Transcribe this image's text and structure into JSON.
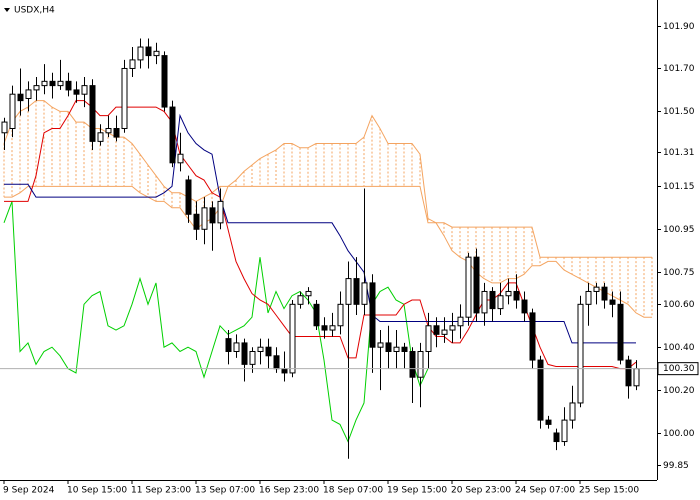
{
  "chart_data": {
    "type": "candlestick",
    "title": "USDX,H4",
    "categories": [
      "9 Sep 2024",
      null,
      null,
      null,
      null,
      null,
      null,
      null,
      "10 Sep 15:00",
      null,
      null,
      null,
      null,
      null,
      null,
      null,
      "11 Sep 23:00",
      null,
      null,
      null,
      null,
      null,
      null,
      null,
      "13 Sep 07:00",
      null,
      null,
      null,
      null,
      null,
      null,
      null,
      "16 Sep 23:00",
      null,
      null,
      null,
      null,
      null,
      null,
      null,
      "18 Sep 07:00",
      null,
      null,
      null,
      null,
      null,
      null,
      null,
      "19 Sep 15:00",
      null,
      null,
      null,
      null,
      null,
      null,
      null,
      "20 Sep 23:00",
      null,
      null,
      null,
      null,
      null,
      null,
      null,
      "24 Sep 07:00",
      null,
      null,
      null,
      null,
      null,
      null,
      null,
      "25 Sep 15:00",
      null,
      null,
      null,
      null,
      null,
      null,
      null,
      null,
      null
    ],
    "open": [
      101.4,
      101.42,
      101.58,
      101.56,
      101.6,
      101.62,
      101.64,
      101.62,
      101.64,
      101.6,
      101.58,
      101.62,
      101.36,
      101.4,
      101.42,
      101.42,
      101.7,
      101.74,
      101.8,
      101.76,
      101.76,
      101.52,
      101.26,
      101.18,
      101.02,
      100.95,
      101.05,
      100.98,
      100.44,
      100.38,
      100.42,
      100.32,
      100.38,
      100.4,
      100.36,
      100.3,
      100.28,
      100.6,
      100.64,
      100.6,
      100.5,
      100.48,
      100.5,
      100.6,
      100.72,
      100.6,
      100.7,
      100.4,
      100.42,
      100.38,
      100.4,
      100.38,
      100.26,
      100.38,
      100.5,
      100.46,
      100.48,
      100.5,
      100.54,
      100.82,
      100.56,
      100.66,
      100.58,
      100.64,
      100.66,
      100.62,
      100.56,
      100.34,
      100.06,
      100.0,
      99.96,
      100.06,
      100.14,
      100.6,
      100.66,
      100.68,
      100.62,
      100.6,
      100.34,
      100.22,
      null,
      null
    ],
    "high": [
      101.47,
      101.62,
      101.7,
      101.64,
      101.66,
      101.72,
      101.68,
      101.74,
      101.68,
      101.64,
      101.66,
      101.65,
      101.44,
      101.48,
      101.48,
      101.74,
      101.8,
      101.84,
      101.84,
      101.82,
      101.78,
      101.55,
      101.4,
      101.2,
      101.08,
      101.1,
      101.08,
      101.14,
      100.48,
      100.46,
      100.44,
      100.4,
      100.44,
      100.44,
      100.4,
      100.38,
      100.62,
      100.66,
      100.68,
      100.62,
      100.54,
      100.56,
      100.66,
      100.8,
      100.82,
      101.14,
      100.74,
      100.48,
      100.5,
      100.48,
      100.42,
      100.4,
      100.42,
      100.56,
      100.54,
      100.54,
      100.56,
      100.6,
      100.84,
      100.86,
      100.7,
      100.68,
      100.7,
      100.72,
      100.74,
      100.66,
      100.58,
      100.36,
      100.08,
      100.02,
      100.12,
      100.22,
      100.64,
      100.7,
      100.7,
      100.7,
      100.66,
      100.66,
      100.36,
      100.34,
      null,
      null
    ],
    "low": [
      101.32,
      101.38,
      101.48,
      101.5,
      101.55,
      101.58,
      101.56,
      101.6,
      101.57,
      101.54,
      101.52,
      101.32,
      101.34,
      101.38,
      101.36,
      101.4,
      101.66,
      101.7,
      101.7,
      101.72,
      101.5,
      101.24,
      101.22,
      100.98,
      100.9,
      100.88,
      100.85,
      100.95,
      100.32,
      100.35,
      100.24,
      100.28,
      100.32,
      100.3,
      100.28,
      100.24,
      100.26,
      100.58,
      100.6,
      100.48,
      100.44,
      100.45,
      100.46,
      99.88,
      100.55,
      100.55,
      100.28,
      100.2,
      100.3,
      100.3,
      100.3,
      100.14,
      100.12,
      100.3,
      100.4,
      100.42,
      100.42,
      100.44,
      100.5,
      100.52,
      100.5,
      100.52,
      100.55,
      100.6,
      100.58,
      100.52,
      100.3,
      100.02,
      100.02,
      99.92,
      99.94,
      100.02,
      100.12,
      100.5,
      100.6,
      100.58,
      100.54,
      100.32,
      100.16,
      100.2,
      null,
      null
    ],
    "close": [
      101.45,
      101.58,
      101.55,
      101.6,
      101.62,
      101.64,
      101.62,
      101.64,
      101.6,
      101.58,
      101.62,
      101.36,
      101.4,
      101.42,
      101.38,
      101.7,
      101.74,
      101.8,
      101.76,
      101.78,
      101.52,
      101.26,
      101.3,
      101.02,
      100.95,
      101.05,
      100.98,
      101.08,
      100.38,
      100.42,
      100.32,
      100.38,
      100.4,
      100.36,
      100.3,
      100.28,
      100.6,
      100.64,
      100.66,
      100.5,
      100.48,
      100.5,
      100.6,
      100.72,
      100.6,
      100.7,
      100.4,
      100.42,
      100.38,
      100.4,
      100.38,
      100.26,
      100.38,
      100.5,
      100.46,
      100.48,
      100.5,
      100.54,
      100.82,
      100.56,
      100.66,
      100.58,
      100.64,
      100.66,
      100.62,
      100.56,
      100.34,
      100.06,
      100.04,
      99.96,
      100.06,
      100.14,
      100.6,
      100.66,
      100.68,
      100.62,
      100.6,
      100.34,
      100.22,
      100.3,
      null,
      null
    ],
    "bull_color": "#ffffff",
    "bear_color": "#000000",
    "cloud": {
      "color": "#f4a460",
      "span_a": [
        101.35,
        101.45,
        101.5,
        101.52,
        101.55,
        101.55,
        101.52,
        101.5,
        101.5,
        101.45,
        101.45,
        101.42,
        101.42,
        101.4,
        101.38,
        101.38,
        101.35,
        101.3,
        101.25,
        101.2,
        101.15,
        101.12,
        101.12,
        101.1,
        101.08,
        101.1,
        101.12,
        101.15,
        101.15,
        101.18,
        101.22,
        101.25,
        101.28,
        101.3,
        101.32,
        101.35,
        101.35,
        101.33,
        101.33,
        101.35,
        101.35,
        101.35,
        101.35,
        101.35,
        101.35,
        101.38,
        101.48,
        101.42,
        101.35,
        101.35,
        101.35,
        101.35,
        101.3,
        101.0,
        100.98,
        100.98,
        100.96,
        100.96,
        100.96,
        100.96,
        100.96,
        100.96,
        100.96,
        100.96,
        100.96,
        100.96,
        100.96,
        100.82,
        100.82,
        100.82,
        100.82,
        100.82,
        100.82,
        100.82,
        100.82,
        100.82,
        100.82,
        100.82,
        100.82,
        100.82,
        100.82,
        100.82
      ],
      "span_b": [
        101.1,
        101.1,
        101.12,
        101.15,
        101.15,
        101.15,
        101.15,
        101.15,
        101.15,
        101.15,
        101.15,
        101.15,
        101.15,
        101.15,
        101.15,
        101.15,
        101.15,
        101.12,
        101.1,
        101.08,
        101.08,
        101.05,
        101.05,
        101.0,
        100.95,
        100.98,
        101.0,
        101.05,
        101.15,
        101.15,
        101.15,
        101.15,
        101.15,
        101.15,
        101.15,
        101.15,
        101.15,
        101.15,
        101.15,
        101.15,
        101.15,
        101.15,
        101.15,
        101.15,
        101.15,
        101.15,
        101.15,
        101.15,
        101.15,
        101.15,
        101.15,
        101.15,
        101.15,
        100.98,
        100.98,
        100.92,
        100.85,
        100.82,
        100.8,
        100.75,
        100.72,
        100.7,
        100.7,
        100.72,
        100.72,
        100.74,
        100.78,
        100.78,
        100.8,
        100.8,
        100.76,
        100.74,
        100.72,
        100.7,
        100.68,
        100.66,
        100.64,
        100.62,
        100.6,
        100.56,
        100.54,
        100.54
      ]
    },
    "lines": [
      {
        "color": "#00d000",
        "values": [
          100.98,
          101.08,
          100.38,
          100.42,
          100.32,
          100.38,
          100.4,
          100.36,
          100.3,
          100.28,
          100.6,
          100.64,
          100.66,
          100.5,
          100.48,
          100.5,
          100.6,
          100.72,
          100.6,
          100.7,
          100.4,
          100.42,
          100.38,
          100.4,
          100.38,
          100.26,
          100.38,
          100.5,
          100.46,
          100.48,
          100.5,
          100.54,
          100.82,
          100.56,
          100.66,
          100.58,
          100.64,
          100.66,
          100.62,
          100.56,
          100.34,
          100.06,
          100.04,
          99.96,
          100.06,
          100.14,
          100.6,
          100.66,
          100.68,
          100.62,
          100.6,
          100.34,
          100.22,
          100.3,
          null,
          null,
          null,
          null,
          null,
          null,
          null,
          null,
          null,
          null,
          null,
          null,
          null,
          null,
          null,
          null,
          null,
          null,
          null,
          null,
          null,
          null,
          null,
          null,
          null,
          null,
          null,
          null
        ]
      },
      {
        "color": "#e00000",
        "values": [
          101.08,
          101.08,
          101.08,
          101.08,
          101.2,
          101.4,
          101.42,
          101.42,
          101.48,
          101.55,
          101.55,
          101.52,
          101.48,
          101.48,
          101.52,
          101.52,
          101.52,
          101.52,
          101.52,
          101.52,
          101.5,
          101.45,
          101.3,
          101.25,
          101.2,
          101.18,
          101.12,
          101.1,
          100.95,
          100.8,
          100.72,
          100.65,
          100.62,
          100.6,
          100.55,
          100.5,
          100.45,
          100.45,
          100.45,
          100.45,
          100.45,
          100.45,
          100.45,
          100.35,
          100.35,
          100.55,
          100.55,
          100.55,
          100.55,
          100.55,
          100.6,
          100.62,
          100.62,
          100.5,
          100.45,
          100.45,
          100.42,
          100.42,
          100.48,
          100.55,
          100.62,
          100.62,
          100.65,
          100.7,
          100.7,
          100.6,
          100.5,
          100.4,
          100.32,
          100.31,
          100.31,
          100.31,
          100.31,
          100.31,
          100.31,
          100.31,
          100.31,
          100.3,
          100.3,
          100.33,
          null,
          null
        ]
      },
      {
        "color": "#000080",
        "values": [
          101.16,
          101.16,
          101.16,
          101.16,
          101.1,
          101.1,
          101.1,
          101.1,
          101.1,
          101.1,
          101.1,
          101.1,
          101.1,
          101.1,
          101.1,
          101.1,
          101.1,
          101.1,
          101.1,
          101.1,
          101.12,
          101.15,
          101.48,
          101.4,
          101.35,
          101.32,
          101.3,
          101.1,
          100.98,
          100.98,
          100.98,
          100.98,
          100.98,
          100.98,
          100.98,
          100.98,
          100.98,
          100.98,
          100.98,
          100.98,
          100.98,
          100.98,
          100.92,
          100.85,
          100.8,
          100.75,
          100.55,
          100.52,
          100.52,
          100.52,
          100.52,
          100.52,
          100.52,
          100.52,
          100.52,
          100.52,
          100.52,
          100.52,
          100.52,
          100.52,
          100.52,
          100.52,
          100.52,
          100.52,
          100.52,
          100.52,
          100.52,
          100.52,
          100.52,
          100.52,
          100.52,
          100.42,
          100.42,
          100.42,
          100.42,
          100.42,
          100.42,
          100.42,
          100.42,
          100.42,
          null,
          null
        ]
      }
    ],
    "ylim": [
      99.79,
      102.01
    ],
    "yticks": [
      {
        "value": 101.9,
        "label": "101.90"
      },
      {
        "value": 101.7,
        "label": "101.70"
      },
      {
        "value": 101.5,
        "label": "101.50"
      },
      101.31,
      101.15,
      100.95,
      100.75,
      {
        "value": 100.6,
        "label": "100.60"
      },
      {
        "value": 100.4,
        "label": "100.40"
      },
      {
        "value": 100.2,
        "label": "100.20"
      },
      {
        "value": 100,
        "label": "100.00"
      },
      99.85
    ],
    "current_price": {
      "value": 100.3,
      "label": "100.30"
    }
  }
}
